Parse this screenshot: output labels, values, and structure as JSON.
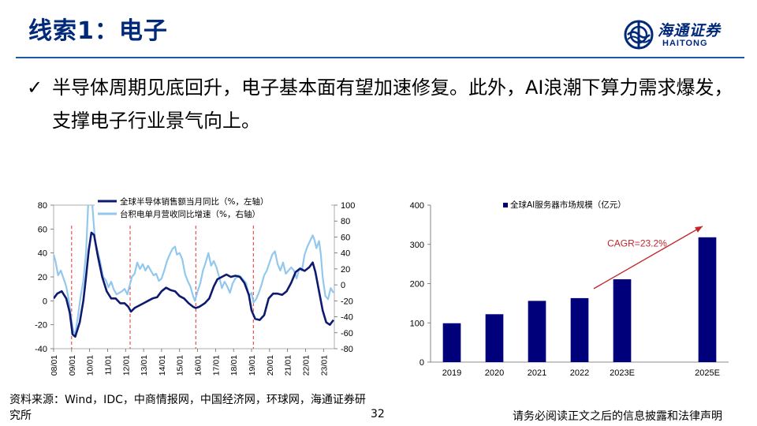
{
  "header": {
    "title": "线索1：电子",
    "logo_cn": "海通证券",
    "logo_en": "HAITONG"
  },
  "bullet": {
    "text": "半导体周期见底回升，电子基本面有望加速修复。此外，AI浪潮下算力需求爆发，支撑电子行业景气向上。"
  },
  "footer": {
    "source": "资料来源：Wind，IDC，中商情报网，中国经济网，环球网，海通证券研究所",
    "page_number": "32",
    "disclaimer": "请务必阅读正文之后的信息披露和法律声明"
  },
  "colors": {
    "brand": "#00297a",
    "semis": "#0d1a70",
    "tsmc": "#93c8ee",
    "bar": "#00007a",
    "cagr": "#c0272d"
  },
  "chart_data": [
    {
      "type": "line",
      "legend_placement": "top",
      "x_ticks": [
        "08/01",
        "09/01",
        "10/01",
        "11/01",
        "12/01",
        "13/01",
        "14/01",
        "15/01",
        "16/01",
        "17/01",
        "18/01",
        "19/01",
        "20/01",
        "21/01",
        "22/01",
        "23/01"
      ],
      "y_left_ticks": [
        "80",
        "60",
        "40",
        "20",
        "0",
        "-20",
        "-40"
      ],
      "y_right_ticks": [
        "100",
        "80",
        "60",
        "40",
        "20",
        "0",
        "-20",
        "-40",
        "-60",
        "-80"
      ],
      "ylim_left": [
        -40,
        80
      ],
      "ylim_right": [
        -80,
        100
      ],
      "xlim": [
        2008.0,
        2023.6
      ],
      "cycle_markers": [
        2009.0,
        2012.25,
        2015.9,
        2019.1
      ],
      "series": [
        {
          "name": "全球半导体销售额当月同比（%，左轴）",
          "axis": "left",
          "points": [
            [
              2008.0,
              2
            ],
            [
              2008.2,
              6
            ],
            [
              2008.45,
              8
            ],
            [
              2008.7,
              2
            ],
            [
              2008.9,
              -10
            ],
            [
              2009.05,
              -28
            ],
            [
              2009.2,
              -30
            ],
            [
              2009.45,
              -18
            ],
            [
              2009.65,
              0
            ],
            [
              2009.8,
              20
            ],
            [
              2009.95,
              42
            ],
            [
              2010.1,
              57
            ],
            [
              2010.25,
              55
            ],
            [
              2010.45,
              38
            ],
            [
              2010.7,
              20
            ],
            [
              2010.95,
              8
            ],
            [
              2011.2,
              2
            ],
            [
              2011.45,
              2
            ],
            [
              2011.7,
              -2
            ],
            [
              2011.95,
              -2
            ],
            [
              2012.15,
              -5
            ],
            [
              2012.3,
              -9
            ],
            [
              2012.5,
              -6
            ],
            [
              2012.75,
              -4
            ],
            [
              2013.0,
              -2
            ],
            [
              2013.25,
              0
            ],
            [
              2013.5,
              2
            ],
            [
              2013.75,
              3
            ],
            [
              2014.0,
              8
            ],
            [
              2014.25,
              11
            ],
            [
              2014.5,
              9
            ],
            [
              2014.75,
              8
            ],
            [
              2015.0,
              4
            ],
            [
              2015.25,
              2
            ],
            [
              2015.5,
              -2
            ],
            [
              2015.75,
              -5
            ],
            [
              2015.9,
              -6
            ],
            [
              2016.1,
              -5
            ],
            [
              2016.4,
              -2
            ],
            [
              2016.65,
              2
            ],
            [
              2016.9,
              12
            ],
            [
              2017.1,
              18
            ],
            [
              2017.35,
              20
            ],
            [
              2017.6,
              22
            ],
            [
              2017.85,
              20
            ],
            [
              2018.1,
              21
            ],
            [
              2018.35,
              20
            ],
            [
              2018.6,
              15
            ],
            [
              2018.85,
              5
            ],
            [
              2019.0,
              -8
            ],
            [
              2019.2,
              -15
            ],
            [
              2019.45,
              -16
            ],
            [
              2019.7,
              -12
            ],
            [
              2019.95,
              2
            ],
            [
              2020.2,
              6
            ],
            [
              2020.45,
              6
            ],
            [
              2020.7,
              5
            ],
            [
              2020.95,
              8
            ],
            [
              2021.2,
              15
            ],
            [
              2021.45,
              24
            ],
            [
              2021.7,
              27
            ],
            [
              2021.95,
              25
            ],
            [
              2022.2,
              28
            ],
            [
              2022.4,
              32
            ],
            [
              2022.55,
              24
            ],
            [
              2022.75,
              8
            ],
            [
              2022.95,
              -8
            ],
            [
              2023.15,
              -18
            ],
            [
              2023.35,
              -20
            ],
            [
              2023.55,
              -16
            ]
          ]
        },
        {
          "name": "台积电单月营收同比增速（%，右轴）",
          "axis": "right",
          "points": [
            [
              2008.0,
              38
            ],
            [
              2008.1,
              30
            ],
            [
              2008.25,
              12
            ],
            [
              2008.4,
              18
            ],
            [
              2008.55,
              8
            ],
            [
              2008.7,
              -2
            ],
            [
              2008.85,
              -20
            ],
            [
              2009.0,
              -45
            ],
            [
              2009.1,
              -58
            ],
            [
              2009.2,
              -62
            ],
            [
              2009.35,
              -40
            ],
            [
              2009.5,
              -15
            ],
            [
              2009.65,
              5
            ],
            [
              2009.8,
              40
            ],
            [
              2009.92,
              100
            ],
            [
              2010.05,
              118
            ],
            [
              2010.15,
              100
            ],
            [
              2010.3,
              55
            ],
            [
              2010.45,
              42
            ],
            [
              2010.6,
              28
            ],
            [
              2010.75,
              10
            ],
            [
              2010.9,
              6
            ],
            [
              2011.05,
              -3
            ],
            [
              2011.2,
              4
            ],
            [
              2011.35,
              -6
            ],
            [
              2011.5,
              -12
            ],
            [
              2011.65,
              -10
            ],
            [
              2011.8,
              -8
            ],
            [
              2011.95,
              -5
            ],
            [
              2012.1,
              -12
            ],
            [
              2012.2,
              -3
            ],
            [
              2012.35,
              10
            ],
            [
              2012.5,
              14
            ],
            [
              2012.65,
              28
            ],
            [
              2012.8,
              20
            ],
            [
              2012.95,
              26
            ],
            [
              2013.1,
              18
            ],
            [
              2013.25,
              24
            ],
            [
              2013.4,
              18
            ],
            [
              2013.55,
              12
            ],
            [
              2013.7,
              14
            ],
            [
              2013.85,
              5
            ],
            [
              2014.0,
              8
            ],
            [
              2014.15,
              18
            ],
            [
              2014.3,
              30
            ],
            [
              2014.45,
              38
            ],
            [
              2014.6,
              45
            ],
            [
              2014.75,
              48
            ],
            [
              2014.85,
              38
            ],
            [
              2015.0,
              40
            ],
            [
              2015.15,
              32
            ],
            [
              2015.3,
              14
            ],
            [
              2015.45,
              5
            ],
            [
              2015.6,
              -2
            ],
            [
              2015.75,
              -14
            ],
            [
              2015.85,
              -20
            ],
            [
              2016.0,
              -8
            ],
            [
              2016.15,
              2
            ],
            [
              2016.3,
              18
            ],
            [
              2016.45,
              28
            ],
            [
              2016.6,
              40
            ],
            [
              2016.75,
              24
            ],
            [
              2016.9,
              30
            ],
            [
              2017.05,
              22
            ],
            [
              2017.2,
              10
            ],
            [
              2017.35,
              -4
            ],
            [
              2017.5,
              4
            ],
            [
              2017.65,
              -2
            ],
            [
              2017.8,
              -10
            ],
            [
              2017.95,
              2
            ],
            [
              2018.1,
              8
            ],
            [
              2018.25,
              12
            ],
            [
              2018.4,
              10
            ],
            [
              2018.55,
              6
            ],
            [
              2018.7,
              2
            ],
            [
              2018.85,
              -14
            ],
            [
              2019.0,
              -10
            ],
            [
              2019.1,
              -22
            ],
            [
              2019.25,
              -18
            ],
            [
              2019.4,
              -10
            ],
            [
              2019.55,
              0
            ],
            [
              2019.7,
              12
            ],
            [
              2019.85,
              18
            ],
            [
              2020.0,
              28
            ],
            [
              2020.15,
              38
            ],
            [
              2020.3,
              42
            ],
            [
              2020.45,
              26
            ],
            [
              2020.6,
              18
            ],
            [
              2020.75,
              28
            ],
            [
              2020.9,
              14
            ],
            [
              2021.05,
              18
            ],
            [
              2021.2,
              22
            ],
            [
              2021.35,
              18
            ],
            [
              2021.5,
              8
            ],
            [
              2021.65,
              20
            ],
            [
              2021.8,
              18
            ],
            [
              2021.95,
              38
            ],
            [
              2022.1,
              48
            ],
            [
              2022.25,
              55
            ],
            [
              2022.4,
              62
            ],
            [
              2022.5,
              56
            ],
            [
              2022.6,
              46
            ],
            [
              2022.75,
              55
            ],
            [
              2022.85,
              38
            ],
            [
              2022.95,
              10
            ],
            [
              2023.1,
              -14
            ],
            [
              2023.25,
              -18
            ],
            [
              2023.4,
              -4
            ],
            [
              2023.55,
              -10
            ]
          ]
        }
      ]
    },
    {
      "type": "bar",
      "legend_placement": "top-left",
      "categories": [
        "2019",
        "2020",
        "2021",
        "2022",
        "2023E",
        "",
        "2025E"
      ],
      "series": [
        {
          "name": "全球AI服务器市场规模（亿元）",
          "values": [
            99,
            122,
            156,
            163,
            211,
            null,
            318
          ]
        }
      ],
      "y_ticks": [
        "400",
        "300",
        "200",
        "100",
        "0"
      ],
      "ylim": [
        0,
        400
      ],
      "annotation": "CAGR=23.2%"
    }
  ]
}
